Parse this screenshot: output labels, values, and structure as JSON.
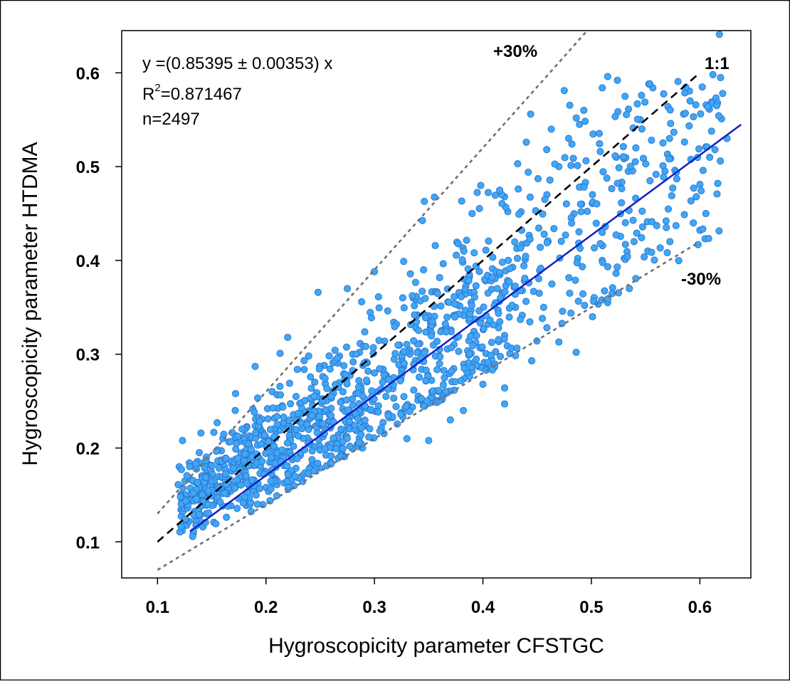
{
  "chart_data": {
    "type": "scatter",
    "title": "",
    "xlabel": "Hygroscopicity parameter CFSTGC",
    "ylabel": "Hygroscopicity parameter HTDMA",
    "xlim": [
      0.067,
      0.647
    ],
    "ylim": [
      0.0615,
      0.645
    ],
    "xticks": [
      0.1,
      0.2,
      0.3,
      0.4,
      0.5,
      0.6
    ],
    "yticks": [
      0.1,
      0.2,
      0.3,
      0.4,
      0.5,
      0.6
    ],
    "xtick_labels": [
      "0.1",
      "0.2",
      "0.3",
      "0.4",
      "0.5",
      "0.6"
    ],
    "ytick_labels": [
      "0.1",
      "0.2",
      "0.3",
      "0.4",
      "0.5",
      "0.6"
    ],
    "grid": false,
    "fit": {
      "equation_text": "y =(0.85395 ± 0.00353) x",
      "r2_prefix": "R",
      "r2_sup": "2",
      "r2_text": "=0.871467",
      "n_text": "n=2497",
      "slope": 0.85395,
      "x_range": [
        0.13,
        0.638
      ],
      "color": "#1020c0"
    },
    "reference_lines": [
      {
        "label": "1:1",
        "slope": 1.0,
        "x_range": [
          0.1,
          0.6
        ],
        "style": "dashed",
        "color": "#000000"
      },
      {
        "label": "+30%",
        "slope": 1.3,
        "x_range": [
          0.1,
          0.5
        ],
        "style": "dotted",
        "color": "#707070"
      },
      {
        "label": "-30%",
        "slope": 0.7,
        "x_range": [
          0.1,
          0.6
        ],
        "style": "dotted",
        "color": "#707070"
      }
    ],
    "series": [
      {
        "marker_color": "#3ea8f5",
        "marker_edge": "#2f6fcf",
        "points": [
          [
            0.618,
            0.641
          ],
          [
            0.612,
            0.598
          ],
          [
            0.611,
            0.569
          ],
          [
            0.621,
            0.578
          ],
          [
            0.609,
            0.51
          ],
          [
            0.62,
            0.551
          ],
          [
            0.625,
            0.53
          ],
          [
            0.591,
            0.57
          ],
          [
            0.603,
            0.496
          ],
          [
            0.6,
            0.481
          ],
          [
            0.585,
            0.556
          ],
          [
            0.594,
            0.44
          ],
          [
            0.578,
            0.437
          ],
          [
            0.572,
            0.53
          ],
          [
            0.566,
            0.501
          ],
          [
            0.553,
            0.588
          ],
          [
            0.545,
            0.55
          ],
          [
            0.541,
            0.52
          ],
          [
            0.531,
            0.575
          ],
          [
            0.524,
            0.592
          ],
          [
            0.515,
            0.596
          ],
          [
            0.51,
            0.584
          ],
          [
            0.534,
            0.495
          ],
          [
            0.552,
            0.41
          ],
          [
            0.535,
            0.37
          ],
          [
            0.515,
            0.355
          ],
          [
            0.51,
            0.43
          ],
          [
            0.523,
            0.51
          ],
          [
            0.493,
            0.56
          ],
          [
            0.489,
            0.545
          ],
          [
            0.475,
            0.581
          ],
          [
            0.479,
            0.53
          ],
          [
            0.501,
            0.47
          ],
          [
            0.463,
            0.54
          ],
          [
            0.444,
            0.556
          ],
          [
            0.47,
            0.5
          ],
          [
            0.491,
            0.46
          ],
          [
            0.51,
            0.4
          ],
          [
            0.486,
            0.302
          ],
          [
            0.47,
            0.313
          ],
          [
            0.445,
            0.293
          ],
          [
            0.456,
            0.35
          ],
          [
            0.48,
            0.365
          ],
          [
            0.46,
            0.42
          ],
          [
            0.501,
            0.34
          ],
          [
            0.44,
            0.526
          ],
          [
            0.432,
            0.503
          ],
          [
            0.43,
            0.35
          ],
          [
            0.42,
            0.32
          ],
          [
            0.4,
            0.268
          ],
          [
            0.42,
            0.264
          ],
          [
            0.42,
            0.247
          ],
          [
            0.398,
            0.48
          ],
          [
            0.39,
            0.45
          ],
          [
            0.346,
            0.463
          ],
          [
            0.3,
            0.388
          ],
          [
            0.275,
            0.37
          ],
          [
            0.248,
            0.366
          ],
          [
            0.22,
            0.318
          ],
          [
            0.213,
            0.301
          ],
          [
            0.19,
            0.287
          ],
          [
            0.172,
            0.258
          ],
          [
            0.155,
            0.227
          ],
          [
            0.14,
            0.216
          ],
          [
            0.123,
            0.208
          ],
          [
            0.128,
            0.149
          ],
          [
            0.133,
            0.109
          ],
          [
            0.12,
            0.18
          ],
          [
            0.119,
            0.161
          ],
          [
            0.145,
            0.13
          ],
          [
            0.175,
            0.146
          ],
          [
            0.2,
            0.158
          ],
          [
            0.22,
            0.195
          ],
          [
            0.241,
            0.204
          ],
          [
            0.262,
            0.2
          ],
          [
            0.289,
            0.2
          ],
          [
            0.33,
            0.21
          ],
          [
            0.35,
            0.208
          ],
          [
            0.37,
            0.23
          ],
          [
            0.36,
            0.29
          ],
          [
            0.382,
            0.24
          ],
          [
            0.36,
            0.305
          ],
          [
            0.3,
            0.28
          ],
          [
            0.28,
            0.3
          ],
          [
            0.27,
            0.25
          ]
        ]
      }
    ]
  }
}
